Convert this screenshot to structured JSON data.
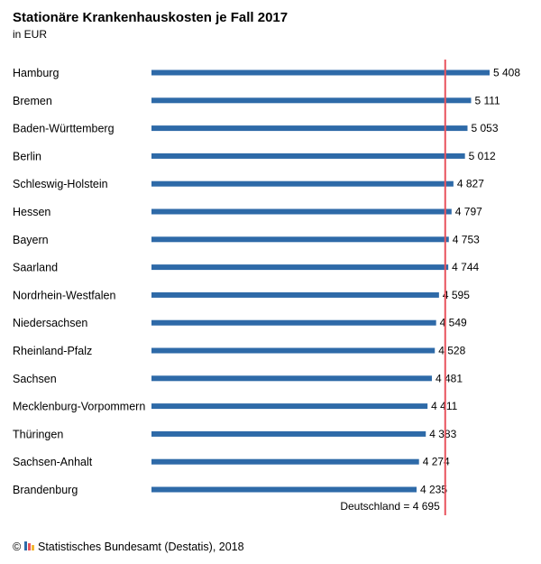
{
  "chart_data": {
    "type": "bar",
    "orientation": "horizontal",
    "title": "Stationäre Krankenhauskosten je Fall 2017",
    "subtitle": "in EUR",
    "categories": [
      "Hamburg",
      "Bremen",
      "Baden-Württemberg",
      "Berlin",
      "Schleswig-Holstein",
      "Hessen",
      "Bayern",
      "Saarland",
      "Nordrhein-Westfalen",
      "Niedersachsen",
      "Rheinland-Pfalz",
      "Sachsen",
      "Mecklenburg-Vorpommern",
      "Thüringen",
      "Sachsen-Anhalt",
      "Brandenburg"
    ],
    "values": [
      5408,
      5111,
      5053,
      5012,
      4827,
      4797,
      4753,
      4744,
      4595,
      4549,
      4528,
      4481,
      4411,
      4383,
      4274,
      4235
    ],
    "value_labels": [
      "5 408",
      "5 111",
      "5 053",
      "5 012",
      "4 827",
      "4 797",
      "4 753",
      "4 744",
      "4 595",
      "4 549",
      "4 528",
      "4 481",
      "4 411",
      "4 383",
      "4 274",
      "4 235"
    ],
    "reference_line": {
      "value": 4695,
      "label": "Deutschland = 4 695",
      "color": "#e8535d"
    },
    "bar_color": "#2e6aa8",
    "grid": false,
    "legend": "none"
  },
  "source": {
    "text": "Statistisches Bundesamt (Destatis), 2018",
    "copyright": "©",
    "logo": "destatis-logo"
  }
}
